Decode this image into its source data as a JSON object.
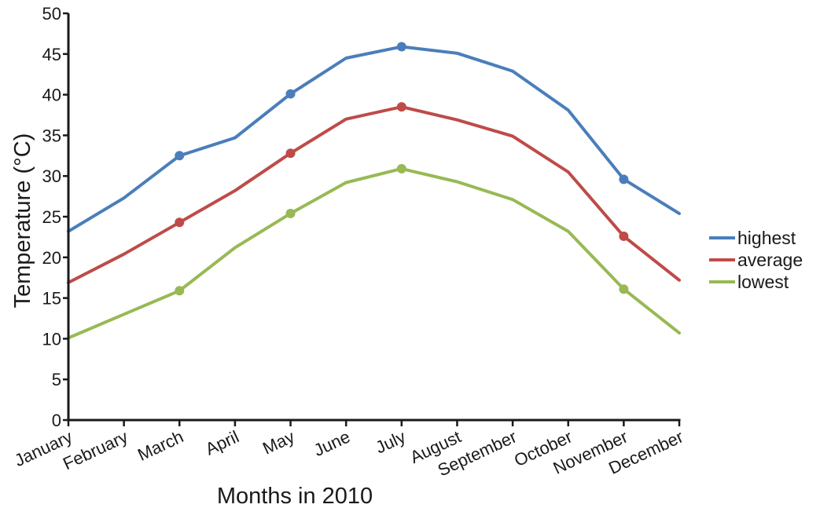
{
  "chart_data": {
    "type": "line",
    "title": "",
    "xlabel": "Months in 2010",
    "ylabel": "Temperature (°C)",
    "categories": [
      "January",
      "February",
      "March",
      "April",
      "May",
      "June",
      "July",
      "August",
      "September",
      "October",
      "November",
      "December"
    ],
    "ylim": [
      0,
      50
    ],
    "yticks": [
      0,
      5,
      10,
      15,
      20,
      25,
      30,
      35,
      40,
      45,
      50
    ],
    "grid": false,
    "legend_position": "right",
    "series": [
      {
        "name": "highest",
        "color": "#4a7ebb",
        "values": [
          23.2,
          27.3,
          32.5,
          34.7,
          40.1,
          44.5,
          45.9,
          45.1,
          42.9,
          38.1,
          29.6,
          25.4
        ],
        "marked_points": [
          2,
          4,
          6,
          10
        ]
      },
      {
        "name": "average",
        "color": "#be4b48",
        "values": [
          16.9,
          20.4,
          24.3,
          28.2,
          32.8,
          37.0,
          38.5,
          36.9,
          34.9,
          30.5,
          22.6,
          17.2
        ],
        "marked_points": [
          2,
          4,
          6,
          10
        ]
      },
      {
        "name": "lowest",
        "color": "#98b954",
        "values": [
          10.1,
          13.0,
          15.9,
          21.2,
          25.4,
          29.2,
          30.9,
          29.3,
          27.1,
          23.2,
          16.1,
          10.7
        ],
        "marked_points": [
          2,
          4,
          6,
          10
        ]
      }
    ]
  }
}
